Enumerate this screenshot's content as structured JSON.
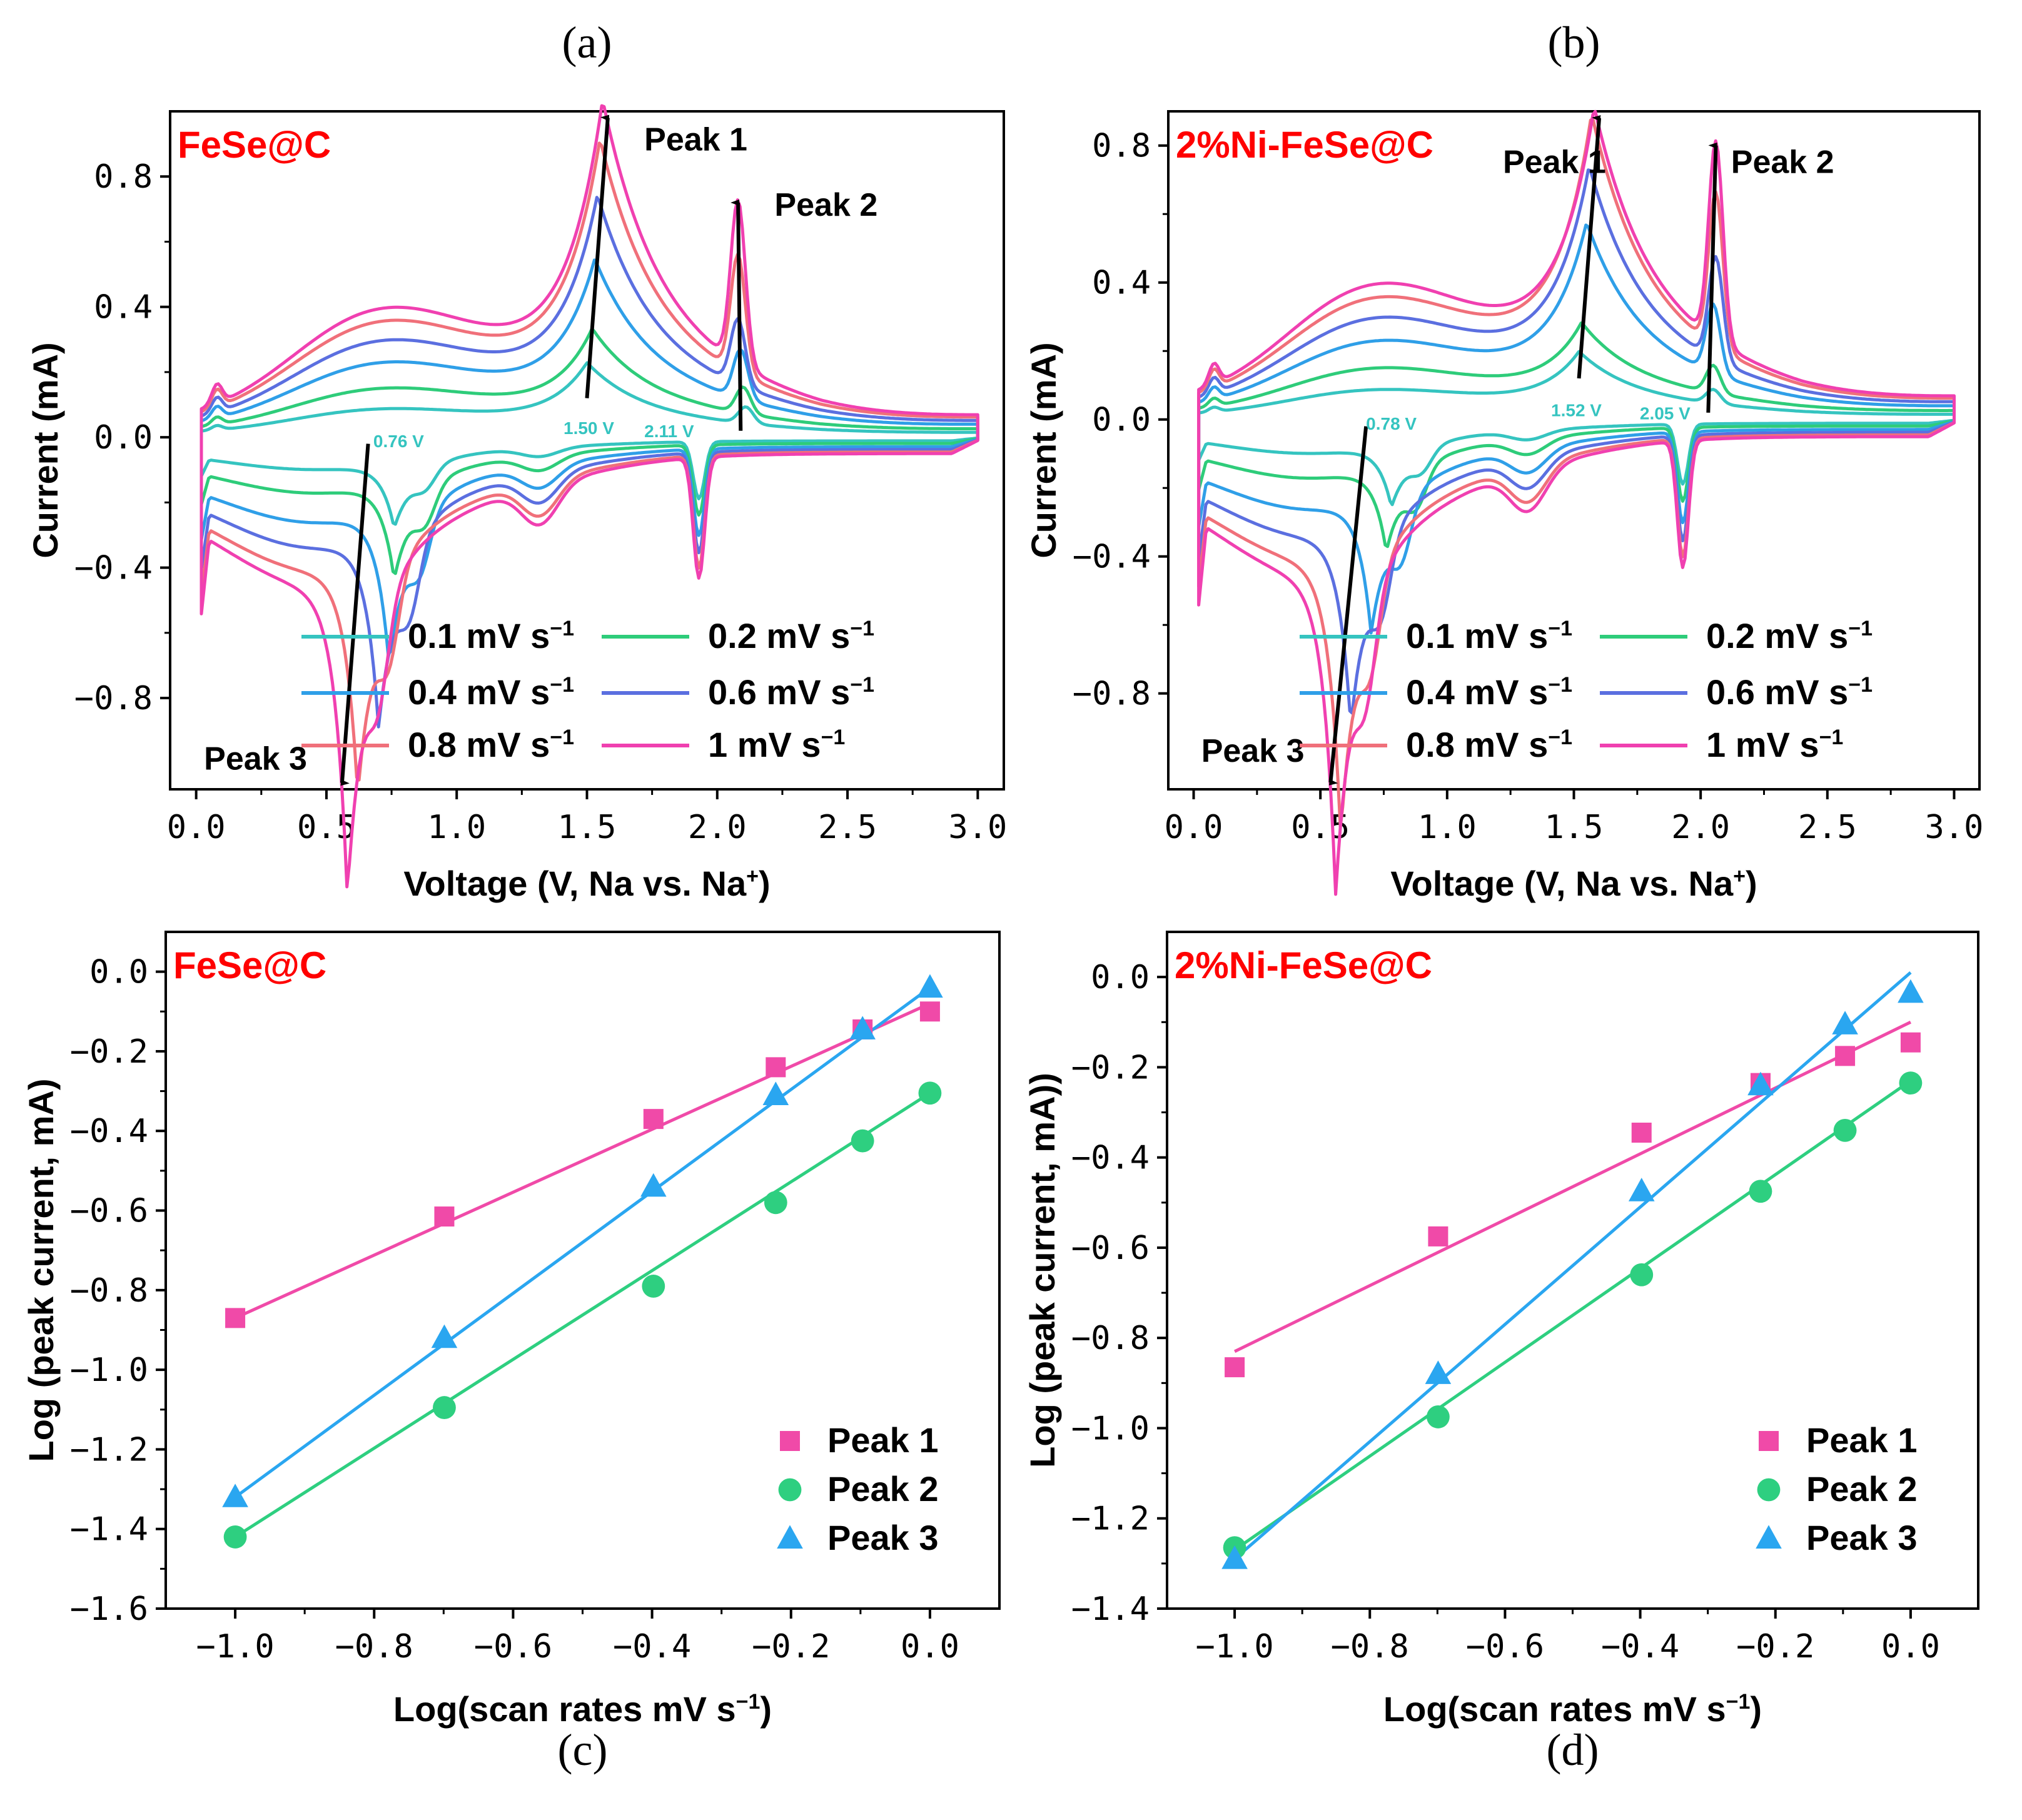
{
  "colors": {
    "rate_0_1": "#35c4c0",
    "rate_0_2": "#2ecc7a",
    "rate_0_4": "#2f9fe8",
    "rate_0_6": "#5b6fe0",
    "rate_0_8": "#f0707a",
    "rate_1": "#f040b0",
    "peak1": "#f04aa8",
    "peak2": "#2ecf80",
    "peak3": "#2aa6f0",
    "sample": "#ff0000",
    "voltage_text": "#35c4c0"
  },
  "panels": [
    {
      "letter": "(a)",
      "sample": "FeSe@C",
      "xlabel": "Voltage (V, Na vs. Na",
      "xlabel_sup": "+",
      "xlabel_end": ")",
      "ylabel": "Current (mA)",
      "xticks": [
        "0.0",
        "0.5",
        "1.0",
        "1.5",
        "2.0",
        "2.5",
        "3.0"
      ],
      "yticks": [
        "0.8",
        "0.4",
        "0.0",
        "-0.4",
        "-0.8"
      ],
      "peak_labels": [
        "Peak 1",
        "Peak 2",
        "Peak 3"
      ],
      "voltage_labels": [
        "0.76 V",
        "1.50 V",
        "2.11 V"
      ]
    },
    {
      "letter": "(b)",
      "sample": "2%Ni-FeSe@C",
      "xlabel": "Voltage (V, Na vs. Na",
      "xlabel_sup": "+",
      "xlabel_end": ")",
      "ylabel": "Current (mA)",
      "xticks": [
        "0.0",
        "0.5",
        "1.0",
        "1.5",
        "2.0",
        "2.5",
        "3.0"
      ],
      "yticks": [
        "0.8",
        "0.4",
        "0.0",
        "-0.4",
        "-0.8"
      ],
      "peak_labels": [
        "Peak 1",
        "Peak 2",
        "Peak 3"
      ],
      "voltage_labels": [
        "0.78 V",
        "1.52 V",
        "2.05 V"
      ]
    },
    {
      "letter": "(c)",
      "sample": "FeSe@C",
      "xlabel": "Log(scan rates mV s",
      "xlabel_sup": "−1",
      "xlabel_end": ")",
      "ylabel": "Log (peak current, mA)",
      "xticks": [
        "-1.0",
        "-0.8",
        "-0.6",
        "-0.4",
        "-0.2",
        "0.0"
      ],
      "yticks": [
        "0.0",
        "-0.2",
        "-0.4",
        "-0.6",
        "-0.8",
        "-1.0",
        "-1.2",
        "-1.4",
        "-1.6"
      ],
      "legend": [
        "Peak 1",
        "Peak 2",
        "Peak 3"
      ]
    },
    {
      "letter": "(d)",
      "sample": "2%Ni-FeSe@C",
      "xlabel": "Log(scan rates mV s",
      "xlabel_sup": "−1",
      "xlabel_end": ")",
      "ylabel": "Log (peak current, mA))",
      "xticks": [
        "-1.0",
        "-0.8",
        "-0.6",
        "-0.4",
        "-0.2",
        "0.0"
      ],
      "yticks": [
        "0.0",
        "-0.2",
        "-0.4",
        "-0.6",
        "-0.8",
        "-1.0",
        "-1.2",
        "-1.4"
      ],
      "legend": [
        "Peak 1",
        "Peak 2",
        "Peak 3"
      ]
    }
  ],
  "cv_legend": [
    "0.1 mV s",
    "0.2 mV s",
    "0.4 mV s",
    "0.6 mV s",
    "0.8 mV s",
    "1 mV s"
  ],
  "cv_legend_sup": "−1",
  "chart_data": [
    {
      "type": "line",
      "panel": "a",
      "title": "FeSe@C",
      "xlabel": "Voltage (V, Na vs. Na+)",
      "ylabel": "Current (mA)",
      "xlim": [
        -0.1,
        3.1
      ],
      "ylim": [
        -1.08,
        1.0
      ],
      "series": [
        {
          "name": "0.1 mV s−1",
          "color": "#35c4c0",
          "scale": 0.22,
          "o_peak1": 0.18,
          "o_peak2": 0.05,
          "r_peak3": 0.2,
          "vpeaks": [
            1.5,
            2.11,
            0.76
          ]
        },
        {
          "name": "0.2 mV s−1",
          "color": "#2ecc7a",
          "scale": 0.38,
          "o_peak1": 0.25,
          "o_peak2": 0.08,
          "r_peak3": 0.3,
          "vpeaks": [
            1.52,
            2.1,
            0.76
          ]
        },
        {
          "name": "0.4 mV s−1",
          "color": "#2f9fe8",
          "scale": 0.58,
          "o_peak1": 0.42,
          "o_peak2": 0.15,
          "r_peak3": 0.48,
          "vpeaks": [
            1.53,
            2.09,
            0.74
          ]
        },
        {
          "name": "0.6 mV s−1",
          "color": "#5b6fe0",
          "scale": 0.75,
          "o_peak1": 0.58,
          "o_peak2": 0.2,
          "r_peak3": 0.6,
          "vpeaks": [
            1.54,
            2.08,
            0.7
          ]
        },
        {
          "name": "0.8 mV s−1",
          "color": "#f0707a",
          "scale": 0.9,
          "o_peak1": 0.72,
          "o_peak2": 0.36,
          "r_peak3": 0.72,
          "vpeaks": [
            1.55,
            2.08,
            0.62
          ]
        },
        {
          "name": "1 mV s−1",
          "color": "#f040b0",
          "scale": 1.0,
          "o_peak1": 0.82,
          "o_peak2": 0.5,
          "r_peak3": 0.97,
          "vpeaks": [
            1.56,
            2.08,
            0.58
          ]
        }
      ]
    },
    {
      "type": "line",
      "panel": "b",
      "title": "2%Ni-FeSe@C",
      "xlabel": "Voltage (V, Na vs. Na+)",
      "ylabel": "Current (mA)",
      "xlim": [
        -0.1,
        3.1
      ],
      "ylim": [
        -1.08,
        0.9
      ],
      "series": [
        {
          "name": "0.1 mV s−1",
          "color": "#35c4c0",
          "scale": 0.22,
          "o_peak1": 0.15,
          "o_peak2": 0.04,
          "r_peak3": 0.18,
          "vpeaks": [
            1.52,
            2.05,
            0.78
          ]
        },
        {
          "name": "0.2 mV s−1",
          "color": "#2ecc7a",
          "scale": 0.38,
          "o_peak1": 0.2,
          "o_peak2": 0.08,
          "r_peak3": 0.25,
          "vpeaks": [
            1.53,
            2.05,
            0.76
          ]
        },
        {
          "name": "0.4 mV s−1",
          "color": "#2f9fe8",
          "scale": 0.58,
          "o_peak1": 0.45,
          "o_peak2": 0.2,
          "r_peak3": 0.4,
          "vpeaks": [
            1.55,
            2.05,
            0.7
          ]
        },
        {
          "name": "0.6 mV s−1",
          "color": "#5b6fe0",
          "scale": 0.75,
          "o_peak1": 0.58,
          "o_peak2": 0.3,
          "r_peak3": 0.58,
          "vpeaks": [
            1.56,
            2.06,
            0.62
          ]
        },
        {
          "name": "0.8 mV s−1",
          "color": "#f0707a",
          "scale": 0.9,
          "o_peak1": 0.7,
          "o_peak2": 0.45,
          "r_peak3": 0.82,
          "vpeaks": [
            1.57,
            2.06,
            0.58
          ]
        },
        {
          "name": "1 mV s−1",
          "color": "#f040b0",
          "scale": 1.0,
          "o_peak1": 0.7,
          "o_peak2": 0.58,
          "r_peak3": 0.95,
          "vpeaks": [
            1.58,
            2.06,
            0.56
          ]
        }
      ]
    },
    {
      "type": "scatter",
      "panel": "c",
      "title": "FeSe@C",
      "xlabel": "Log(scan rates mV s−1)",
      "ylabel": "Log (peak current, mA)",
      "xlim": [
        -1.1,
        0.1
      ],
      "ylim": [
        -1.6,
        0.1
      ],
      "x": [
        -1.0,
        -0.699,
        -0.398,
        -0.222,
        -0.097,
        0.0
      ],
      "series": [
        {
          "name": "Peak 1",
          "marker": "square",
          "color": "#f04aa8",
          "values": [
            -0.87,
            -0.615,
            -0.37,
            -0.24,
            -0.145,
            -0.1
          ],
          "fit": [
            -0.87,
            -0.08
          ]
        },
        {
          "name": "Peak 2",
          "marker": "circle",
          "color": "#2ecf80",
          "values": [
            -1.42,
            -1.095,
            -0.79,
            -0.58,
            -0.425,
            -0.305
          ],
          "fit": [
            -1.42,
            -0.305
          ]
        },
        {
          "name": "Peak 3",
          "marker": "triangle",
          "color": "#2aa6f0",
          "values": [
            -1.32,
            -0.92,
            -0.54,
            -0.31,
            -0.145,
            -0.04
          ],
          "fit": [
            -1.32,
            -0.04
          ]
        }
      ]
    },
    {
      "type": "scatter",
      "panel": "d",
      "title": "2%Ni-FeSe@C",
      "xlabel": "Log(scan rates mV s−1)",
      "ylabel": "Log (peak current, mA))",
      "xlim": [
        -1.1,
        0.1
      ],
      "ylim": [
        -1.4,
        0.1
      ],
      "x": [
        -1.0,
        -0.699,
        -0.398,
        -0.222,
        -0.097,
        0.0
      ],
      "series": [
        {
          "name": "Peak 1",
          "marker": "square",
          "color": "#f04aa8",
          "values": [
            -0.865,
            -0.575,
            -0.345,
            -0.235,
            -0.175,
            -0.145
          ],
          "fit": [
            -0.83,
            -0.1
          ]
        },
        {
          "name": "Peak 2",
          "marker": "circle",
          "color": "#2ecf80",
          "values": [
            -1.265,
            -0.975,
            -0.66,
            -0.475,
            -0.34,
            -0.235
          ],
          "fit": [
            -1.27,
            -0.23
          ]
        },
        {
          "name": "Peak 3",
          "marker": "triangle",
          "color": "#2aa6f0",
          "values": [
            -1.29,
            -0.88,
            -0.475,
            -0.24,
            -0.105,
            -0.035
          ],
          "fit": [
            -1.29,
            0.01
          ]
        }
      ]
    }
  ]
}
